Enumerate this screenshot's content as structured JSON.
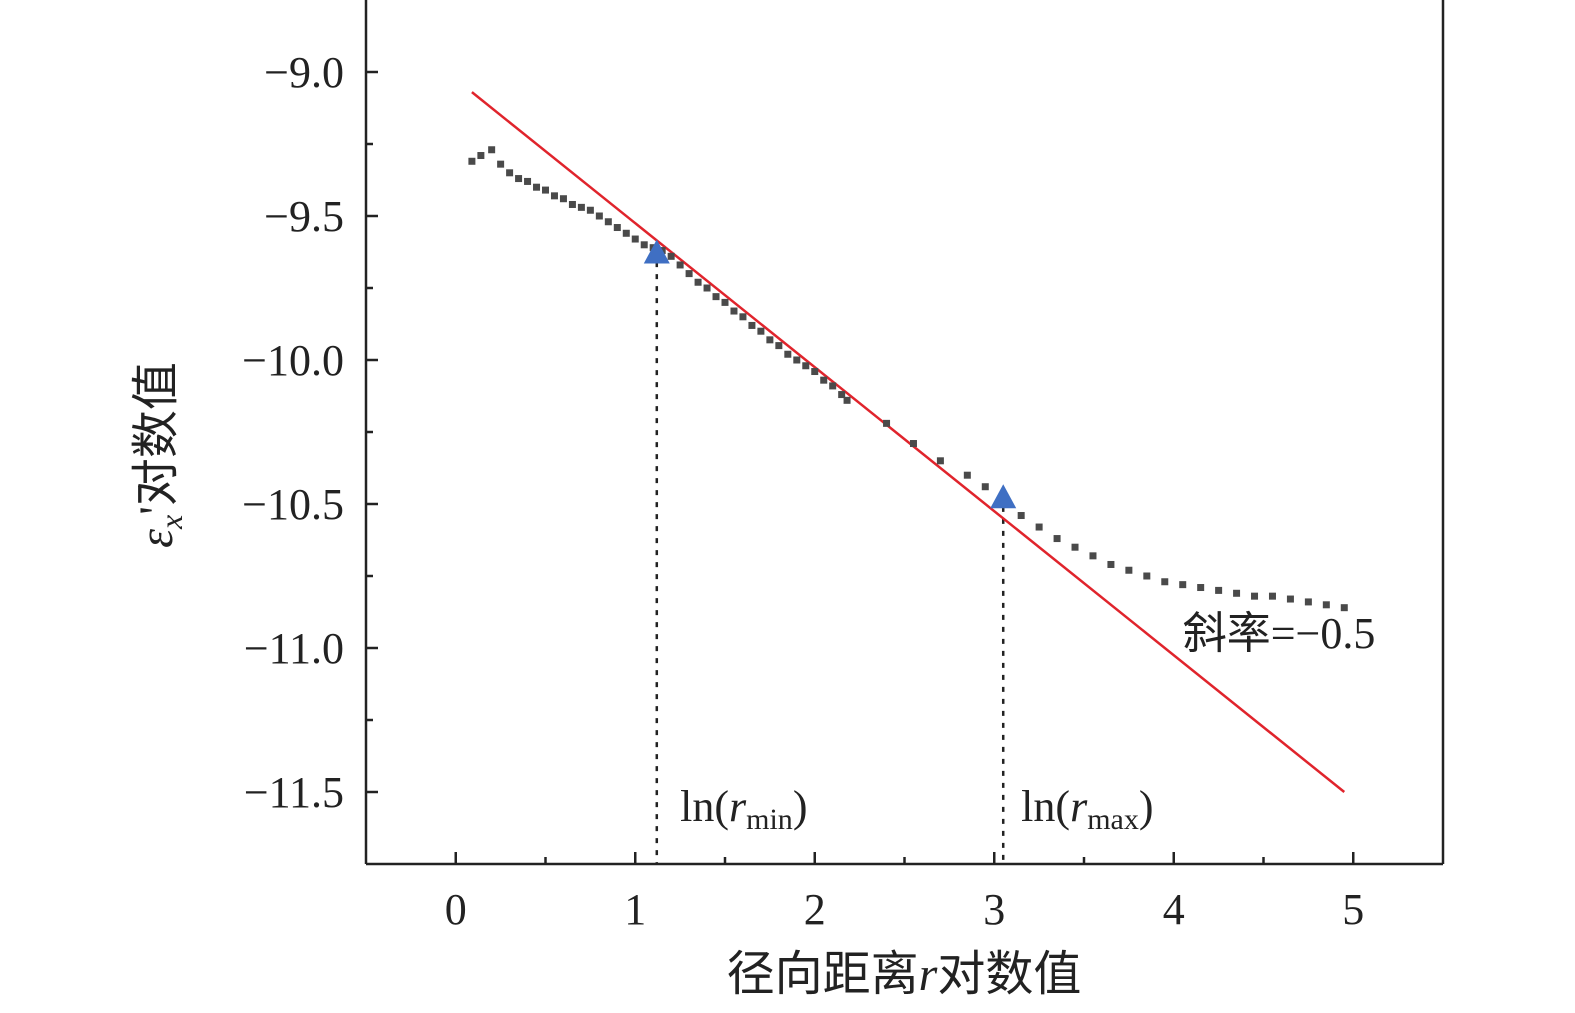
{
  "chart_data": {
    "type": "scatter",
    "xlabel_prefix": "径向距离",
    "xlabel_var": "r",
    "xlabel_suffix": "对数值",
    "ylabel_var": "ε",
    "ylabel_sub": "x",
    "ylabel_suffix": "'对数值",
    "xlim": [
      -0.5,
      5.5
    ],
    "ylim": [
      -11.75,
      -8.75
    ],
    "x_ticks": [
      0,
      1,
      2,
      3,
      4,
      5
    ],
    "x_tick_labels": [
      "0",
      "1",
      "2",
      "3",
      "4",
      "5"
    ],
    "x_minor_ticks": [
      0.5,
      1.5,
      2.5,
      3.5,
      4.5
    ],
    "y_ticks": [
      -9.0,
      -9.5,
      -10.0,
      -10.5,
      -11.0,
      -11.5
    ],
    "y_tick_labels": [
      "−9.0",
      "−9.5",
      "−10.0",
      "−10.5",
      "−11.0",
      "−11.5"
    ],
    "y_minor_ticks": [
      -9.25,
      -9.75,
      -10.25,
      -10.75,
      -11.25
    ],
    "grid": false,
    "series": [
      {
        "kind": "scatter",
        "color": "#4a4a4a",
        "points": [
          [
            0.09,
            -9.31
          ],
          [
            0.14,
            -9.29
          ],
          [
            0.2,
            -9.27
          ],
          [
            0.25,
            -9.32
          ],
          [
            0.3,
            -9.35
          ],
          [
            0.35,
            -9.37
          ],
          [
            0.4,
            -9.38
          ],
          [
            0.45,
            -9.4
          ],
          [
            0.5,
            -9.41
          ],
          [
            0.55,
            -9.43
          ],
          [
            0.6,
            -9.44
          ],
          [
            0.65,
            -9.46
          ],
          [
            0.7,
            -9.47
          ],
          [
            0.75,
            -9.48
          ],
          [
            0.8,
            -9.5
          ],
          [
            0.85,
            -9.52
          ],
          [
            0.9,
            -9.54
          ],
          [
            0.95,
            -9.56
          ],
          [
            1.0,
            -9.58
          ],
          [
            1.05,
            -9.6
          ],
          [
            1.1,
            -9.61
          ],
          [
            1.15,
            -9.62
          ],
          [
            1.2,
            -9.64
          ],
          [
            1.25,
            -9.67
          ],
          [
            1.3,
            -9.7
          ],
          [
            1.35,
            -9.73
          ],
          [
            1.4,
            -9.75
          ],
          [
            1.45,
            -9.78
          ],
          [
            1.5,
            -9.8
          ],
          [
            1.55,
            -9.83
          ],
          [
            1.6,
            -9.85
          ],
          [
            1.65,
            -9.88
          ],
          [
            1.7,
            -9.9
          ],
          [
            1.75,
            -9.93
          ],
          [
            1.8,
            -9.95
          ],
          [
            1.85,
            -9.98
          ],
          [
            1.9,
            -10.0
          ],
          [
            1.95,
            -10.02
          ],
          [
            2.0,
            -10.04
          ],
          [
            2.05,
            -10.07
          ],
          [
            2.1,
            -10.09
          ],
          [
            2.15,
            -10.12
          ],
          [
            2.18,
            -10.14
          ],
          [
            2.4,
            -10.22
          ],
          [
            2.55,
            -10.29
          ],
          [
            2.7,
            -10.35
          ],
          [
            2.85,
            -10.4
          ],
          [
            2.95,
            -10.44
          ],
          [
            3.05,
            -10.49
          ],
          [
            3.15,
            -10.54
          ],
          [
            3.25,
            -10.58
          ],
          [
            3.35,
            -10.62
          ],
          [
            3.45,
            -10.65
          ],
          [
            3.55,
            -10.68
          ],
          [
            3.65,
            -10.71
          ],
          [
            3.75,
            -10.73
          ],
          [
            3.85,
            -10.75
          ],
          [
            3.95,
            -10.77
          ],
          [
            4.05,
            -10.78
          ],
          [
            4.15,
            -10.79
          ],
          [
            4.25,
            -10.8
          ],
          [
            4.35,
            -10.81
          ],
          [
            4.45,
            -10.82
          ],
          [
            4.55,
            -10.82
          ],
          [
            4.65,
            -10.83
          ],
          [
            4.75,
            -10.84
          ],
          [
            4.85,
            -10.85
          ],
          [
            4.95,
            -10.86
          ]
        ]
      },
      {
        "kind": "line",
        "color": "#e0242c",
        "points": [
          [
            0.09,
            -9.07
          ],
          [
            4.95,
            -11.5
          ]
        ]
      },
      {
        "kind": "triangle",
        "color": "#3f6fc3",
        "points": [
          [
            1.12,
            -9.63
          ],
          [
            3.05,
            -10.48
          ]
        ]
      }
    ],
    "guides": [
      {
        "x": 1.12,
        "y_from": -9.66,
        "y_to": -11.75
      },
      {
        "x": 3.05,
        "y_from": -10.51,
        "y_to": -11.75
      }
    ],
    "annotations": {
      "slope_text": "斜率=−0.5",
      "slope_at": [
        4.05,
        -11.0
      ],
      "rmin_prefix": "ln(",
      "rmin_var": "r",
      "rmin_sub": "min",
      "rmin_suffix": ")",
      "rmin_at": [
        1.25,
        -11.6
      ],
      "rmax_prefix": "ln(",
      "rmax_var": "r",
      "rmax_sub": "max",
      "rmax_suffix": ")",
      "rmax_at": [
        3.15,
        -11.6
      ]
    }
  }
}
